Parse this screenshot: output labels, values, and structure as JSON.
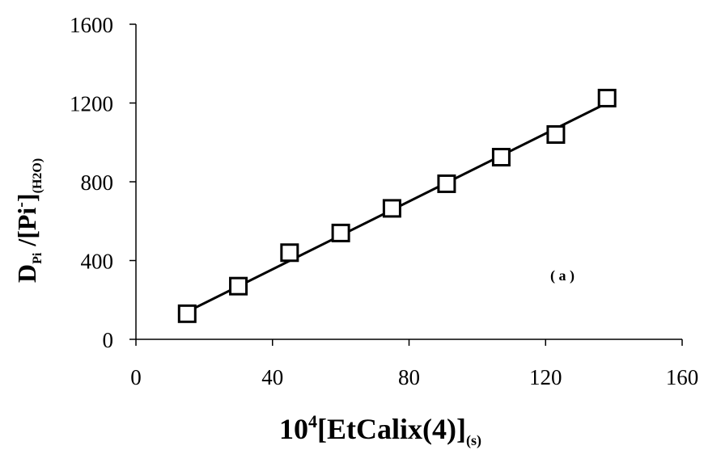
{
  "chart_data": {
    "type": "scatter",
    "xlabel": {
      "base": "10",
      "sup": "4",
      "main": "[EtCalix(4)]",
      "sub": "(s)"
    },
    "ylabel": {
      "main": "D",
      "sub1": "Pi",
      "mid": " /[Pi",
      "sup": "-",
      "end": "]",
      "sub2": "(H2O)"
    },
    "annotation": "( a )",
    "xlim": [
      0,
      160
    ],
    "ylim": [
      0,
      1600
    ],
    "xticks": [
      0,
      40,
      80,
      120,
      160
    ],
    "yticks": [
      0,
      400,
      800,
      1200,
      1600
    ],
    "grid": false,
    "marker": "open-square",
    "series": [
      {
        "x": [
          15,
          30,
          45,
          60,
          75,
          91,
          107,
          123,
          138
        ],
        "y": [
          130,
          270,
          440,
          540,
          665,
          790,
          925,
          1040,
          1225
        ]
      }
    ],
    "fit_line": {
      "x": [
        15,
        138
      ],
      "y": [
        140,
        1200
      ]
    }
  }
}
